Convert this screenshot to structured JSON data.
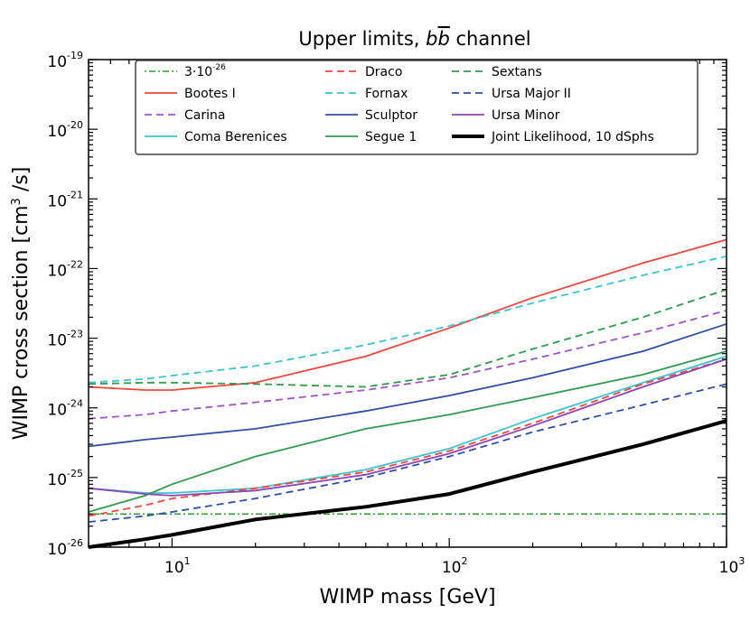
{
  "chart_data": {
    "type": "line",
    "title_prefix": "Upper limits, ",
    "title_b": "b",
    "title_bbar": "b",
    "title_suffix": " channel",
    "xlabel": "WIMP mass [GeV]",
    "ylabel_main": "WIMP cross section [cm",
    "ylabel_sup": "3",
    "ylabel_end": " /s]",
    "xscale": "log",
    "yscale": "log",
    "xlim": [
      5,
      1000
    ],
    "ylim": [
      1e-26,
      1e-19
    ],
    "x_ticks": [
      {
        "value": 10,
        "base": "10",
        "exp": "1"
      },
      {
        "value": 100,
        "base": "10",
        "exp": "2"
      },
      {
        "value": 1000,
        "base": "10",
        "exp": "3"
      }
    ],
    "y_ticks": [
      {
        "value": 1e-26,
        "base": "10",
        "exp": "-26"
      },
      {
        "value": 1e-25,
        "base": "10",
        "exp": "-25"
      },
      {
        "value": 1e-24,
        "base": "10",
        "exp": "-24"
      },
      {
        "value": 1e-23,
        "base": "10",
        "exp": "-23"
      },
      {
        "value": 1e-22,
        "base": "10",
        "exp": "-22"
      },
      {
        "value": 1e-21,
        "base": "10",
        "exp": "-21"
      },
      {
        "value": 1e-20,
        "base": "10",
        "exp": "-20"
      },
      {
        "value": 1e-19,
        "base": "10",
        "exp": "-19"
      }
    ],
    "x": [
      5,
      8,
      10,
      20,
      50,
      100,
      200,
      500,
      1000
    ],
    "series": [
      {
        "name": "3·10",
        "name_sup": "-26",
        "color": "#2ca02c",
        "dash": "2,3,7,3",
        "width": 1.5,
        "values": [
          3e-26,
          3e-26,
          3e-26,
          3e-26,
          3e-26,
          3e-26,
          3e-26,
          3e-26,
          3e-26
        ]
      },
      {
        "name": "Bootes I",
        "color": "#f0473d",
        "dash": "",
        "width": 1.8,
        "values": [
          2e-24,
          1.8e-24,
          1.8e-24,
          2.3e-24,
          5.5e-24,
          1.4e-23,
          3.8e-23,
          1.2e-22,
          2.6e-22
        ]
      },
      {
        "name": "Carina",
        "color": "#9f56c7",
        "dash": "8,5",
        "width": 1.8,
        "values": [
          7e-25,
          8e-25,
          9e-25,
          1.2e-24,
          1.8e-24,
          2.7e-24,
          5e-24,
          1.2e-23,
          2.5e-23
        ]
      },
      {
        "name": "Coma Berenices",
        "color": "#3cc3d0",
        "dash": "",
        "width": 1.8,
        "values": [
          7e-26,
          6e-26,
          6e-26,
          7e-26,
          1.3e-25,
          2.6e-25,
          7e-25,
          2.3e-24,
          5.5e-24
        ]
      },
      {
        "name": "Draco",
        "color": "#f0473d",
        "dash": "8,5",
        "width": 1.8,
        "values": [
          2.8e-26,
          4e-26,
          5e-26,
          7e-26,
          1.2e-25,
          2.4e-25,
          6e-25,
          2.2e-24,
          5e-24
        ]
      },
      {
        "name": "Fornax",
        "color": "#3cc3d0",
        "dash": "8,5",
        "width": 1.8,
        "values": [
          2.3e-24,
          2.6e-24,
          2.9e-24,
          4e-24,
          8e-24,
          1.5e-23,
          3.2e-23,
          8e-23,
          1.5e-22
        ]
      },
      {
        "name": "Sculptor",
        "color": "#2f4fa8",
        "dash": "",
        "width": 1.8,
        "values": [
          2.8e-25,
          3.5e-25,
          3.8e-25,
          5e-25,
          9e-25,
          1.5e-24,
          2.7e-24,
          6.5e-24,
          1.6e-23
        ]
      },
      {
        "name": "Segue 1",
        "color": "#2e9b4e",
        "dash": "",
        "width": 1.8,
        "values": [
          3.2e-26,
          5.5e-26,
          8e-26,
          2e-25,
          5e-25,
          8e-25,
          1.4e-24,
          3e-24,
          6.5e-24
        ]
      },
      {
        "name": "Sextans",
        "color": "#2e9b4e",
        "dash": "8,5",
        "width": 1.8,
        "values": [
          2.2e-24,
          2.3e-24,
          2.3e-24,
          2.2e-24,
          2e-24,
          3e-24,
          7e-24,
          2e-23,
          5e-23
        ]
      },
      {
        "name": "Ursa Major II",
        "color": "#2f4fa8",
        "dash": "8,5",
        "width": 1.8,
        "values": [
          2.3e-26,
          2.8e-26,
          3.2e-26,
          5e-26,
          1e-25,
          2e-25,
          4.5e-25,
          1.1e-24,
          2.2e-24
        ]
      },
      {
        "name": "Ursa Minor",
        "color": "#8d44b5",
        "dash": "",
        "width": 1.8,
        "values": [
          7e-26,
          5.8e-26,
          5.5e-26,
          6.5e-26,
          1.1e-25,
          2.2e-25,
          5.5e-25,
          2e-24,
          5e-24
        ]
      },
      {
        "name": "Joint Likelihood, 10 dSphs",
        "color": "#000000",
        "dash": "",
        "width": 4,
        "values": [
          1e-26,
          1.3e-26,
          1.5e-26,
          2.5e-26,
          3.8e-26,
          5.8e-26,
          1.2e-25,
          3e-25,
          6.5e-25
        ]
      }
    ],
    "legend_position": "top-center",
    "grid": false
  }
}
